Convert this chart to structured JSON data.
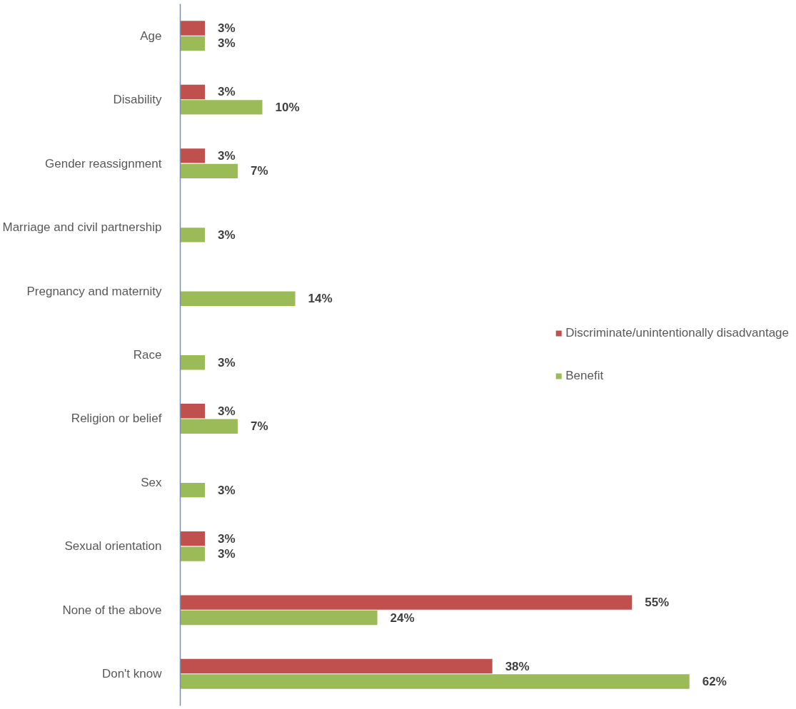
{
  "chart_data": {
    "type": "bar",
    "orientation": "horizontal",
    "categories": [
      "Age",
      "Disability",
      "Gender reassignment",
      "Marriage and civil partnership",
      "Pregnancy and maternity",
      "Race",
      "Religion or belief",
      "Sex",
      "Sexual orientation",
      "None of the above",
      "Don't know"
    ],
    "series": [
      {
        "name": "Discriminate/unintentionally disadvantage",
        "color": "#c0504d",
        "values": [
          3,
          3,
          3,
          null,
          null,
          null,
          3,
          null,
          3,
          55,
          38
        ],
        "value_labels": [
          "3%",
          "3%",
          "3%",
          null,
          null,
          null,
          "3%",
          null,
          "3%",
          "55%",
          "38%"
        ]
      },
      {
        "name": "Benefit",
        "color": "#9bbb59",
        "values": [
          3,
          10,
          7,
          3,
          14,
          3,
          7,
          3,
          3,
          24,
          62
        ],
        "value_labels": [
          "3%",
          "10%",
          "7%",
          "3%",
          "14%",
          "3%",
          "7%",
          "3%",
          "3%",
          "24%",
          "62%"
        ]
      }
    ],
    "legend": "right",
    "grid": false,
    "tick_labels": "y"
  }
}
